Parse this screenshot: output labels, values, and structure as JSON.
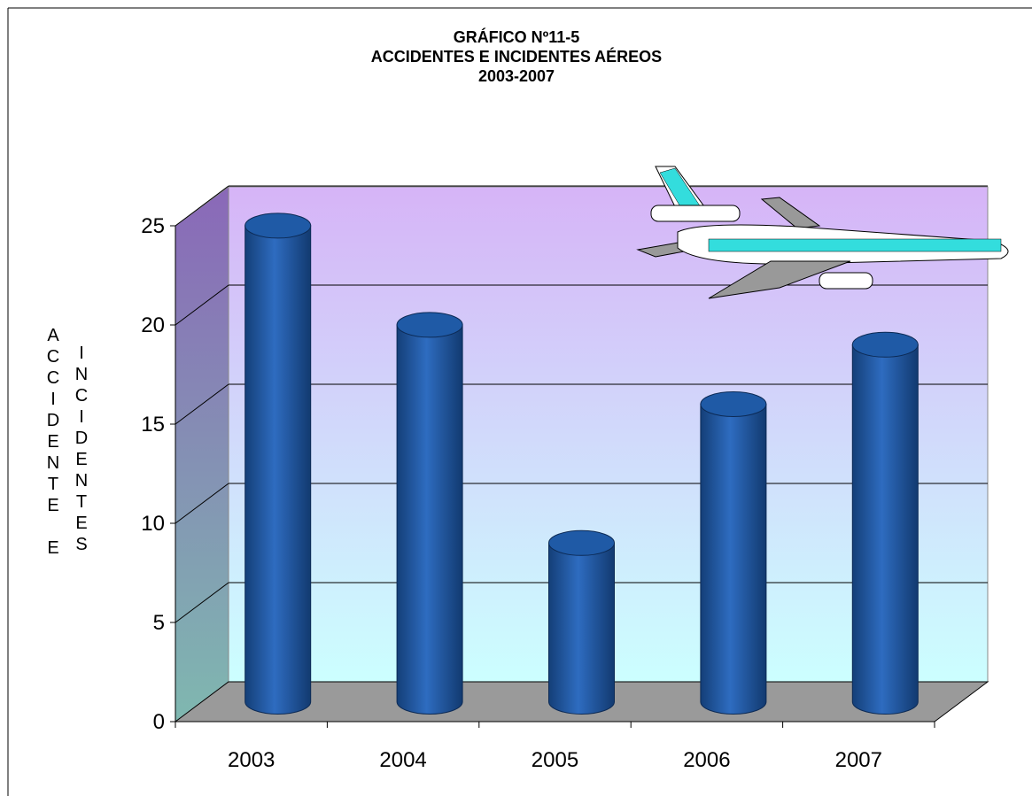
{
  "chart_data": {
    "type": "bar3d",
    "title": [
      "GRÁFICO Nº11-5",
      "ACCIDENTES E INCIDENTES AÉREOS",
      "2003-2007"
    ],
    "y_label": [
      "ACCIDENTE E",
      "INCIDENTES"
    ],
    "categories": [
      "2003",
      "2004",
      "2005",
      "2006",
      "2007"
    ],
    "values": [
      24,
      19,
      8,
      15,
      18
    ],
    "color": "#1f5aa6",
    "ylim": [
      0,
      25
    ],
    "yticks": [
      0,
      5,
      10,
      15,
      20,
      25
    ],
    "grid": true
  }
}
